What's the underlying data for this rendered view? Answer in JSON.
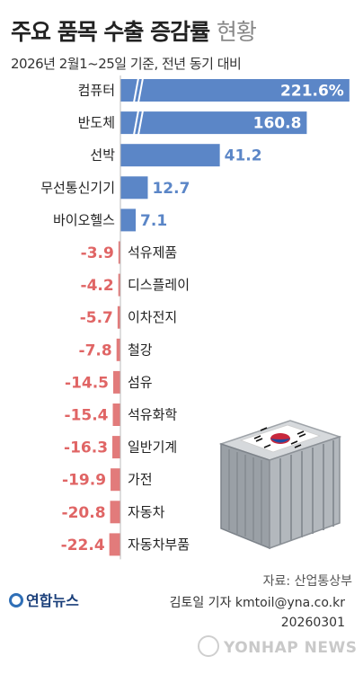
{
  "header": {
    "title_bold": "주요 품목 수출 증감률",
    "title_light": "현황",
    "subtitle": "2026년 2월1~25일 기준, 전년 동기 대비"
  },
  "footer": {
    "source": "자료: 산업통상부",
    "credit_line1": "김토일 기자 kmtoil@yna.co.kr",
    "credit_line2": "20260301",
    "logo": "연합뉴스",
    "watermark": "YONHAP NEWS"
  },
  "colors": {
    "positive": "#5b86c7",
    "negative": "#e27b7b",
    "negative_text": "#e06565",
    "axis": "#bbbbbb"
  },
  "chart_data": {
    "type": "bar",
    "orientation": "horizontal",
    "categories": [
      "컴퓨터",
      "반도체",
      "선박",
      "무선통신기기",
      "바이오헬스",
      "석유제품",
      "디스플레이",
      "이차전지",
      "철강",
      "섬유",
      "석유화학",
      "일반기계",
      "가전",
      "자동차",
      "자동차부품"
    ],
    "values": [
      221.6,
      160.8,
      41.2,
      12.7,
      7.1,
      -3.9,
      -4.2,
      -5.7,
      -7.8,
      -14.5,
      -15.4,
      -16.3,
      -19.9,
      -20.8,
      -22.4
    ],
    "value_labels": [
      "221.6%",
      "160.8",
      "41.2",
      "12.7",
      "7.1",
      "-3.9",
      "-4.2",
      "-5.7",
      "-7.8",
      "-14.5",
      "-15.4",
      "-16.3",
      "-19.9",
      "-20.8",
      "-22.4"
    ],
    "xlabel": "",
    "ylabel": "",
    "grid": false,
    "legend": "none"
  }
}
